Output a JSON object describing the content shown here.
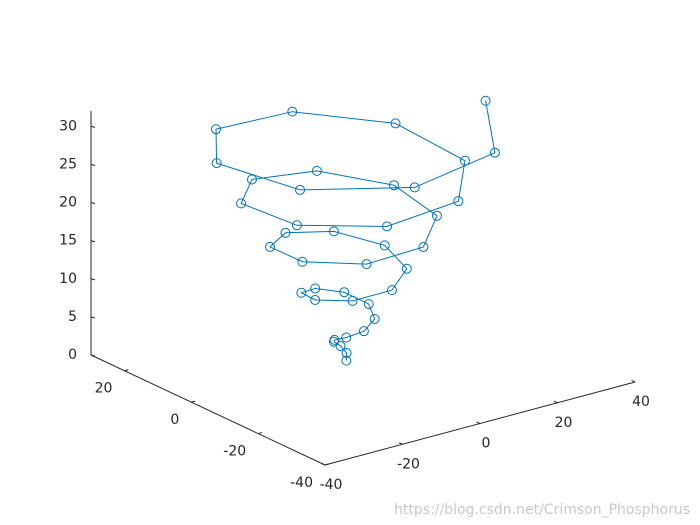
{
  "chart_data": {
    "type": "line3d",
    "x": [
      0,
      0.6,
      -0.1,
      -1.8,
      -3.2,
      -2.6,
      0.4,
      4.3,
      6.4,
      4.4,
      -1.2,
      -7.1,
      -9.5,
      -5.8,
      2.3,
      10.1,
      12.5,
      6.9,
      -3.7,
      -13.3,
      -15.3,
      -7.7,
      5.5,
      16.5,
      18.0,
      8.2,
      -7.6,
      -19.9,
      -20.5,
      -8.2,
      10.2,
      23.3,
      22.8,
      7.8,
      -13.0,
      -26.9,
      -24.7,
      -7.1,
      16.1,
      30.6
    ],
    "y": [
      0,
      0.6,
      1.6,
      1.6,
      -0.2,
      -3.0,
      -4.8,
      -3.5,
      0.7,
      5.7,
      7.9,
      5.2,
      -1.7,
      -8.6,
      -11.0,
      -6.4,
      3.0,
      11.7,
      13.9,
      7.4,
      -4.6,
      -15.0,
      -16.7,
      -8.0,
      6.6,
      18.3,
      19.4,
      8.4,
      -9.0,
      -21.7,
      -21.7,
      -8.5,
      11.7,
      25.2,
      23.9,
      7.6,
      -14.8,
      -28.7,
      -25.8,
      -6.2
    ],
    "z": [
      0,
      0.8,
      1.6,
      2.4,
      3.2,
      4.0,
      4.8,
      5.6,
      6.4,
      7.2,
      8.0,
      8.8,
      9.6,
      10.4,
      11.2,
      12.0,
      12.8,
      13.6,
      14.4,
      15.2,
      16.0,
      16.8,
      17.6,
      18.4,
      19.2,
      20.0,
      20.8,
      21.6,
      22.4,
      23.2,
      24.0,
      24.8,
      25.6,
      26.4,
      27.2,
      28.0,
      28.8,
      29.6,
      30.4,
      31.2
    ],
    "color": "#0072bd",
    "marker": "circle",
    "xlim": [
      -40,
      40
    ],
    "ylim": [
      -40,
      30
    ],
    "zlim": [
      0,
      32
    ],
    "xticks": [
      -40,
      -20,
      0,
      20,
      40
    ],
    "yticks": [
      -40,
      -20,
      0,
      20
    ],
    "zticks": [
      0,
      5,
      10,
      15,
      20,
      25,
      30
    ]
  },
  "watermark": "https://blog.csdn.net/Crimson_Phosphorus"
}
